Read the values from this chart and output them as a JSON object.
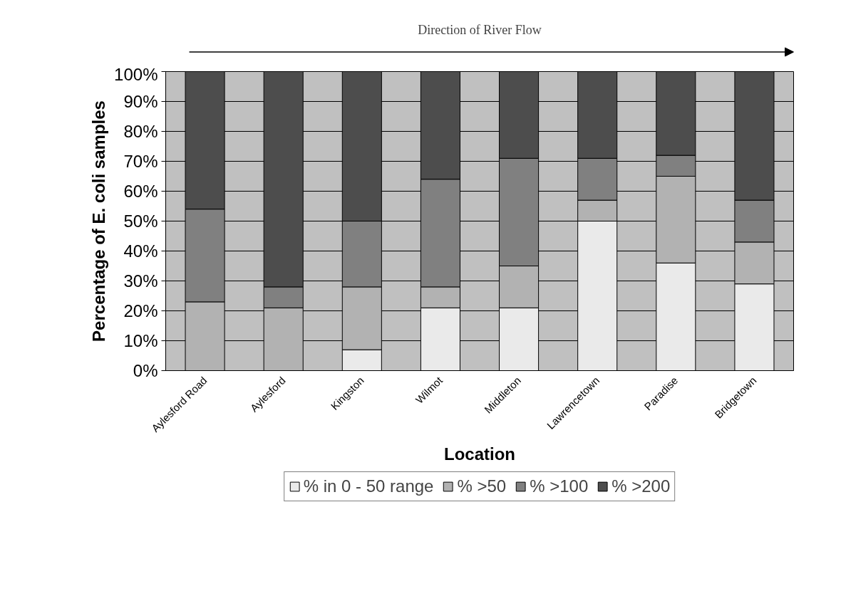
{
  "chart_data": {
    "type": "bar",
    "stacked": true,
    "xlabel": "Location",
    "ylabel": "Percentage of E. coli samples",
    "categories": [
      "Aylesford Road",
      "Aylesford",
      "Kingston",
      "Wilmot",
      "Middleton",
      "Lawrencetown",
      "Paradise",
      "Bridgetown"
    ],
    "series": [
      {
        "name": "% in 0 - 50 range",
        "color": "#eaeaea",
        "values": [
          0,
          0,
          7,
          21,
          21,
          50,
          36,
          29
        ]
      },
      {
        "name": "% >50",
        "color": "#b2b2b2",
        "values": [
          23,
          21,
          21,
          7,
          14,
          7,
          29,
          14
        ]
      },
      {
        "name": "% >100",
        "color": "#808080",
        "values": [
          31,
          7,
          22,
          36,
          36,
          14,
          7,
          14
        ]
      },
      {
        "name": "% >200",
        "color": "#4d4d4d",
        "values": [
          46,
          72,
          50,
          36,
          29,
          29,
          28,
          43
        ]
      }
    ],
    "ylim": [
      0,
      100
    ],
    "yticks": [
      {
        "value": 0,
        "label": "0%"
      },
      {
        "value": 10,
        "label": "10%"
      },
      {
        "value": 20,
        "label": "20%"
      },
      {
        "value": 30,
        "label": "30%"
      },
      {
        "value": 40,
        "label": "40%"
      },
      {
        "value": 50,
        "label": "50%"
      },
      {
        "value": 60,
        "label": "60%"
      },
      {
        "value": 70,
        "label": "70%"
      },
      {
        "value": 80,
        "label": "80%"
      },
      {
        "value": 90,
        "label": "90%"
      },
      {
        "value": 100,
        "label": "100%"
      }
    ],
    "grid": "y",
    "legend": "bottom",
    "annotations": [
      "Direction of River Flow"
    ]
  }
}
